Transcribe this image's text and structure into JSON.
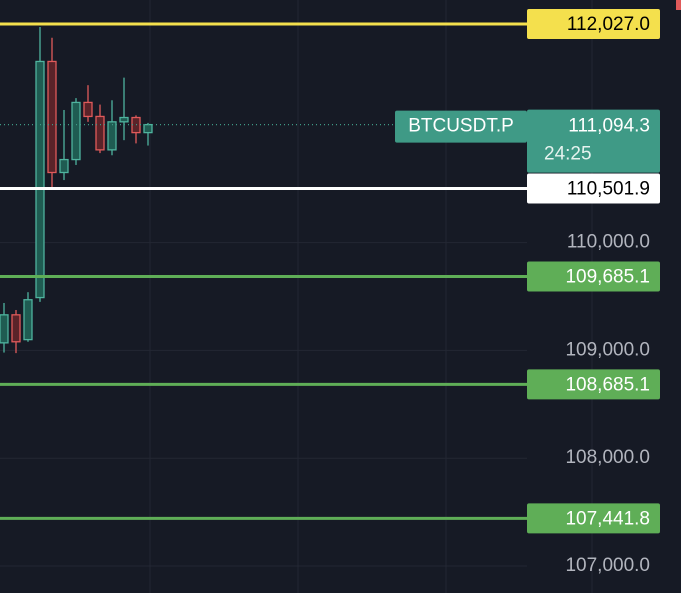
{
  "chart_data": {
    "type": "candlestick",
    "symbol": "BTCUSDT.P",
    "last_price": {
      "value": 111094.3,
      "label": "111,094.3"
    },
    "countdown": "24:25",
    "last_color": "#3f9a86",
    "up_color": "#4fb39e",
    "down_color": "#e05a5a",
    "open": [
      109070,
      109330,
      109100,
      109490,
      111680,
      110650,
      110770,
      111300,
      111170,
      110860,
      111120,
      111160,
      111020
    ],
    "high": [
      109440,
      109375,
      109540,
      112000,
      111900,
      111230,
      111340,
      111460,
      111280,
      111320,
      111530,
      111180,
      111110
    ],
    "low": [
      108980,
      108975,
      109080,
      109450,
      110510,
      110580,
      110720,
      111120,
      110830,
      110810,
      110950,
      110920,
      110900
    ],
    "close": [
      109330,
      109080,
      109470,
      111680,
      110650,
      110770,
      111300,
      111170,
      110860,
      111120,
      111160,
      111020,
      111094.3
    ],
    "ylim": [
      106750,
      112250
    ],
    "yticks": [
      {
        "value": 107000,
        "label": "107,000.0"
      },
      {
        "value": 108000,
        "label": "108,000.0"
      },
      {
        "value": 109000,
        "label": "109,000.0"
      },
      {
        "value": 110000,
        "label": "110,000.0"
      }
    ],
    "grid": true,
    "levels": [
      {
        "value": 112027.0,
        "label": "112,027.0",
        "color": "#f4e04d",
        "text_color": "#000000"
      },
      {
        "value": 110501.9,
        "label": "110,501.9",
        "color": "#ffffff",
        "text_color": "#000000"
      },
      {
        "value": 109685.1,
        "label": "109,685.1",
        "color": "#5fae57",
        "text_color": "#ffffff"
      },
      {
        "value": 108685.1,
        "label": "108,685.1",
        "color": "#5fae57",
        "text_color": "#ffffff"
      },
      {
        "value": 107441.8,
        "label": "107,441.8",
        "color": "#5fae57",
        "text_color": "#ffffff"
      }
    ]
  }
}
